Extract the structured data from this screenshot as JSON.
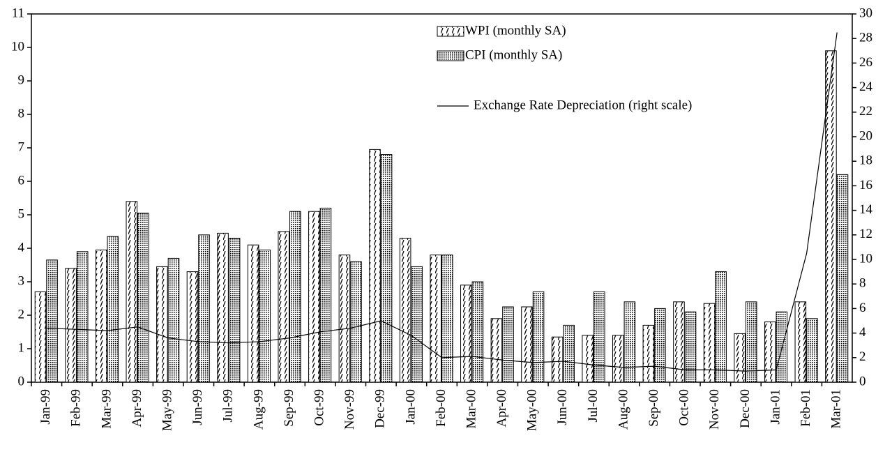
{
  "chart_data": {
    "type": "bar",
    "categories": [
      "Jan-99",
      "Feb-99",
      "Mar-99",
      "Apr-99",
      "May-99",
      "Jun-99",
      "Jul-99",
      "Aug-99",
      "Sep-99",
      "Oct-99",
      "Nov-99",
      "Dec-99",
      "Jan-00",
      "Feb-00",
      "Mar-00",
      "Apr-00",
      "May-00",
      "Jun-00",
      "Jul-00",
      "Aug-00",
      "Sep-00",
      "Oct-00",
      "Nov-00",
      "Dec-00",
      "Jan-01",
      "Feb-01",
      "Mar-01"
    ],
    "series": [
      {
        "name": "WPI (monthly SA)",
        "color": "#000000",
        "values": [
          2.7,
          3.4,
          3.95,
          5.4,
          3.45,
          3.3,
          4.45,
          4.1,
          4.5,
          5.1,
          3.8,
          6.95,
          4.3,
          3.8,
          2.9,
          1.9,
          2.25,
          1.35,
          1.4,
          1.4,
          1.7,
          2.4,
          2.35,
          1.45,
          1.8,
          2.4,
          9.9
        ]
      },
      {
        "name": "CPI (monthly SA)",
        "color": "#000000",
        "values": [
          3.65,
          3.9,
          4.35,
          5.05,
          3.7,
          4.4,
          4.3,
          3.95,
          5.1,
          5.2,
          3.6,
          6.8,
          3.45,
          3.8,
          3.0,
          2.25,
          2.7,
          1.7,
          2.7,
          2.4,
          2.2,
          2.1,
          3.3,
          2.4,
          2.1,
          1.9,
          6.2
        ]
      },
      {
        "name": "Exchange Rate Depreciation (right scale)",
        "color": "#000000",
        "type": "line",
        "axis": "y2",
        "values": [
          4.4,
          4.3,
          4.2,
          4.5,
          3.6,
          3.3,
          3.2,
          3.3,
          3.6,
          4.1,
          4.4,
          5.0,
          3.8,
          2.0,
          2.1,
          1.8,
          1.6,
          1.7,
          1.4,
          1.2,
          1.3,
          1.0,
          1.0,
          0.9,
          1.0,
          10.5,
          28.5
        ]
      }
    ],
    "ylim": [
      0,
      11
    ],
    "yticks": [
      0,
      1,
      2,
      3,
      4,
      5,
      6,
      7,
      8,
      9,
      10,
      11
    ],
    "y2lim": [
      0,
      30
    ],
    "y2ticks": [
      0,
      2,
      4,
      6,
      8,
      10,
      12,
      14,
      16,
      18,
      20,
      22,
      24,
      26,
      28,
      30
    ],
    "grid": false
  }
}
